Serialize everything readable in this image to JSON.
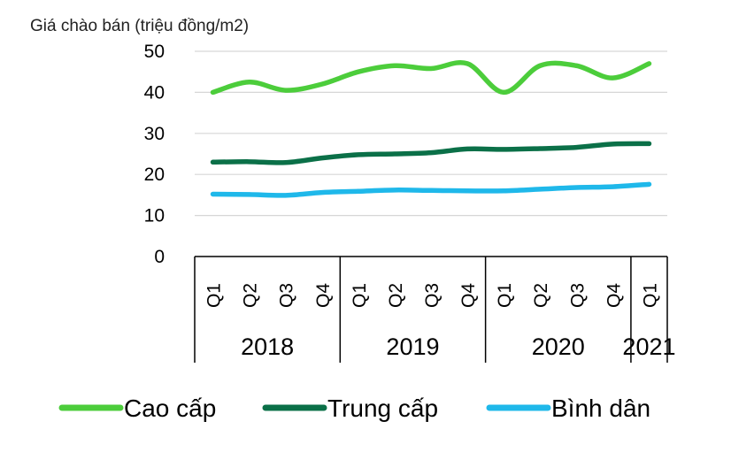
{
  "chart_data": {
    "type": "line",
    "ylabel": "Giá chào bán (triệu đồng/m2)",
    "y_ticks": [
      "50",
      "40",
      "30",
      "20",
      "10",
      "0"
    ],
    "categories": [
      "Q1",
      "Q2",
      "Q3",
      "Q4",
      "Q1",
      "Q2",
      "Q3",
      "Q4",
      "Q1",
      "Q2",
      "Q3",
      "Q4",
      "Q1"
    ],
    "years": [
      "2018",
      "2019",
      "2020",
      "2021"
    ],
    "ylim": [
      0,
      50
    ],
    "grid": true,
    "legend_position": "bottom",
    "series": [
      {
        "name": "Cao cấp",
        "color": "#4ccd3b",
        "values": [
          40,
          42.5,
          40.5,
          42,
          45,
          46.5,
          45.8,
          47,
          40,
          46.5,
          46.5,
          43.5,
          47
        ]
      },
      {
        "name": "Trung cấp",
        "color": "#0b7048",
        "values": [
          23,
          23.1,
          22.9,
          24,
          24.8,
          25,
          25.3,
          26.2,
          26.1,
          26.3,
          26.6,
          27.4,
          27.5
        ]
      },
      {
        "name": "Bình dân",
        "color": "#1fb8ea",
        "values": [
          15.2,
          15.1,
          14.9,
          15.6,
          15.9,
          16.2,
          16.1,
          16,
          16,
          16.4,
          16.8,
          17,
          17.6
        ]
      }
    ]
  }
}
